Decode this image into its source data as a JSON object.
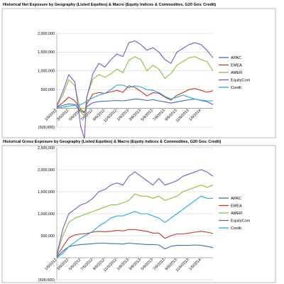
{
  "chart_data": [
    {
      "type": "line",
      "title": "Historical Net Exposure by Geography (Listed Equities) & Macro (Equity Indices & Commodites, G20 Gov. Credit)",
      "xlabel": "",
      "ylabel": "",
      "ylim": [
        -500000,
        2000000
      ],
      "y_ticks": [
        -500000,
        0,
        500000,
        1000000,
        1500000,
        2000000
      ],
      "y_tick_labels": [
        "(500,000)",
        "-",
        "500,000",
        "1,000,000",
        "1,500,000",
        "2,000,000"
      ],
      "x_tick_labels": [
        "1/6/2012",
        "3/6/2012",
        "5/6/2012",
        "7/6/2012",
        "9/6/2012",
        "11/6/2012",
        "1/6/2013",
        "3/6/2013",
        "5/6/2013",
        "7/6/2013",
        "9/6/2013",
        "11/6/2013",
        "1/6/2014"
      ],
      "x_ticks": [
        0,
        2,
        4,
        6,
        8,
        10,
        12,
        14,
        16,
        18,
        20,
        22,
        24
      ],
      "xlim": [
        0,
        26
      ],
      "grid": true,
      "legend": "right",
      "series": [
        {
          "name": "APAC",
          "color": "#3f6cba",
          "x": [
            0,
            1,
            2,
            3,
            4,
            4.6,
            5,
            6,
            7,
            8,
            9,
            10,
            11,
            12,
            13,
            14,
            15,
            16,
            17,
            18,
            19,
            20,
            21,
            22,
            23,
            24,
            25,
            26
          ],
          "values": [
            20000,
            80000,
            120000,
            100000,
            -80000,
            -120000,
            50000,
            150000,
            180000,
            190000,
            200000,
            210000,
            200000,
            220000,
            250000,
            240000,
            210000,
            230000,
            200000,
            170000,
            140000,
            170000,
            200000,
            230000,
            250000,
            210000,
            180000,
            100000
          ]
        },
        {
          "name": "EMEA",
          "color": "#c0392b",
          "x": [
            0,
            1,
            2,
            3,
            4,
            4.6,
            5,
            6,
            7,
            8,
            9,
            10,
            11,
            12,
            13,
            14,
            15,
            16,
            17,
            18,
            19,
            20,
            21,
            22,
            23,
            24,
            25,
            26
          ],
          "values": [
            40000,
            150000,
            300000,
            200000,
            -30000,
            -100000,
            120000,
            380000,
            420000,
            400000,
            440000,
            480000,
            430000,
            600000,
            560000,
            450000,
            330000,
            420000,
            400000,
            300000,
            220000,
            350000,
            420000,
            500000,
            530000,
            480000,
            430000,
            470000
          ]
        },
        {
          "name": "AMER",
          "color": "#8cbf3f",
          "x": [
            0,
            1,
            2,
            3,
            4,
            4.6,
            5,
            6,
            7,
            8,
            9,
            10,
            11,
            12,
            13,
            14,
            15,
            16,
            17,
            18,
            19,
            20,
            21,
            22,
            23,
            24,
            25,
            26
          ],
          "values": [
            60000,
            350000,
            760000,
            600000,
            -100000,
            -200000,
            320000,
            780000,
            900000,
            830000,
            920000,
            1050000,
            950000,
            1280000,
            1380000,
            1300000,
            1000000,
            1150000,
            1050000,
            800000,
            930000,
            1150000,
            1250000,
            1350000,
            1380000,
            1300000,
            1250000,
            1000000
          ]
        },
        {
          "name": "EquityCom",
          "color": "#7e57c2",
          "x": [
            0,
            1,
            2,
            3,
            4,
            4.6,
            5,
            6,
            7,
            8,
            9,
            10,
            11,
            12,
            13,
            14,
            15,
            16,
            17,
            18,
            19,
            20,
            21,
            22,
            23,
            24,
            25,
            26
          ],
          "values": [
            80000,
            450000,
            900000,
            700000,
            -500000,
            -800000,
            300000,
            920000,
            1200000,
            1100000,
            1300000,
            1450000,
            1380000,
            1750000,
            1800000,
            1700000,
            1550000,
            1620000,
            1500000,
            1300000,
            1200000,
            1500000,
            1600000,
            1700000,
            1750000,
            1700000,
            1550000,
            1350000
          ]
        },
        {
          "name": "Credit",
          "color": "#29a8d8",
          "x": [
            0,
            1,
            2,
            3,
            4,
            4.6,
            5,
            6,
            7,
            8,
            9,
            10,
            11,
            12,
            13,
            14,
            15,
            16,
            17,
            18,
            19,
            20,
            21,
            22,
            23,
            24,
            25,
            26
          ],
          "values": [
            0,
            30000,
            60000,
            80000,
            100000,
            150000,
            200000,
            280000,
            350000,
            400000,
            500000,
            620000,
            620000,
            550000,
            600000,
            570000,
            500000,
            480000,
            420000,
            320000,
            250000,
            300000,
            350000,
            300000,
            250000,
            220000,
            200000,
            200000
          ]
        }
      ]
    },
    {
      "type": "line",
      "title": "Historical Gross Exposure by Geography (Listed Equities) & Macro (Equity Indices & Commodites, G20 Gov. Credit)",
      "xlabel": "",
      "ylabel": "",
      "ylim": [
        -500000,
        2500000
      ],
      "y_ticks": [
        -500000,
        0,
        500000,
        1000000,
        1500000,
        2000000,
        2500000
      ],
      "y_tick_labels": [
        "(500,000)",
        "-",
        "500,000",
        "1,000,000",
        "1,500,000",
        "2,000,000",
        "2,500,000"
      ],
      "x_tick_labels": [
        "1/6/2012",
        "3/6/2012",
        "5/6/2012",
        "7/6/2012",
        "9/6/2012",
        "11/6/2012",
        "1/6/2013",
        "3/6/2013",
        "5/6/2013",
        "7/6/2013",
        "9/6/2013",
        "11/6/2013",
        "1/6/2014"
      ],
      "x_ticks": [
        0,
        2,
        4,
        6,
        8,
        10,
        12,
        14,
        16,
        18,
        20,
        22,
        24
      ],
      "xlim": [
        0,
        26
      ],
      "grid": true,
      "legend": "right",
      "series": [
        {
          "name": "APAC",
          "color": "#3f6cba",
          "x": [
            0,
            1,
            2,
            3,
            4,
            5,
            6,
            7,
            8,
            9,
            10,
            11,
            12,
            13,
            14,
            15,
            16,
            17,
            18,
            19,
            20,
            21,
            22,
            23,
            24,
            25,
            26
          ],
          "values": [
            20000,
            150000,
            250000,
            280000,
            300000,
            310000,
            320000,
            330000,
            330000,
            320000,
            320000,
            310000,
            330000,
            320000,
            310000,
            300000,
            300000,
            290000,
            200000,
            260000,
            280000,
            280000,
            280000,
            290000,
            280000,
            260000,
            230000
          ]
        },
        {
          "name": "EMEA",
          "color": "#c0392b",
          "x": [
            0,
            1,
            2,
            3,
            4,
            5,
            6,
            7,
            8,
            9,
            10,
            11,
            12,
            13,
            14,
            15,
            16,
            17,
            18,
            19,
            20,
            21,
            22,
            23,
            24,
            25,
            26
          ],
          "values": [
            40000,
            250000,
            450000,
            520000,
            540000,
            550000,
            580000,
            600000,
            590000,
            600000,
            620000,
            610000,
            640000,
            640000,
            620000,
            600000,
            560000,
            560000,
            440000,
            500000,
            540000,
            540000,
            560000,
            580000,
            600000,
            580000,
            550000
          ]
        },
        {
          "name": "AMER",
          "color": "#8cbf3f",
          "x": [
            0,
            1,
            2,
            3,
            4,
            5,
            6,
            7,
            8,
            9,
            10,
            11,
            12,
            13,
            14,
            15,
            16,
            17,
            18,
            19,
            20,
            21,
            22,
            23,
            24,
            25,
            26
          ],
          "values": [
            60000,
            500000,
            800000,
            900000,
            950000,
            1000000,
            1050000,
            1100000,
            1150000,
            1200000,
            1200000,
            1250000,
            1300000,
            1450000,
            1400000,
            1400000,
            1350000,
            1400000,
            1300000,
            1350000,
            1400000,
            1500000,
            1550000,
            1600000,
            1650000,
            1600000,
            1650000
          ]
        },
        {
          "name": "EquityCom",
          "color": "#7e57c2",
          "x": [
            0,
            1,
            2,
            3,
            4,
            5,
            6,
            7,
            8,
            9,
            10,
            11,
            12,
            13,
            14,
            15,
            16,
            17,
            18,
            19,
            20,
            21,
            22,
            23,
            24,
            25,
            26
          ],
          "values": [
            80000,
            650000,
            1000000,
            1100000,
            1200000,
            1250000,
            1350000,
            1500000,
            1550000,
            1650000,
            1700000,
            1650000,
            1850000,
            1950000,
            1850000,
            1750000,
            1650000,
            1800000,
            1650000,
            1700000,
            1750000,
            1850000,
            1900000,
            1950000,
            2000000,
            1950000,
            1850000
          ]
        },
        {
          "name": "Credit",
          "color": "#29a8d8",
          "x": [
            0,
            1,
            2,
            3,
            4,
            5,
            6,
            7,
            8,
            9,
            10,
            11,
            12,
            13,
            14,
            15,
            16,
            17,
            18,
            19,
            20,
            21,
            22,
            23,
            24,
            25,
            26
          ],
          "values": [
            0,
            100000,
            250000,
            350000,
            450000,
            520000,
            600000,
            720000,
            800000,
            900000,
            950000,
            950000,
            1000000,
            1050000,
            1000000,
            1000000,
            950000,
            900000,
            800000,
            900000,
            1000000,
            1100000,
            1200000,
            1300000,
            1400000,
            1350000,
            1350000
          ]
        }
      ]
    }
  ]
}
